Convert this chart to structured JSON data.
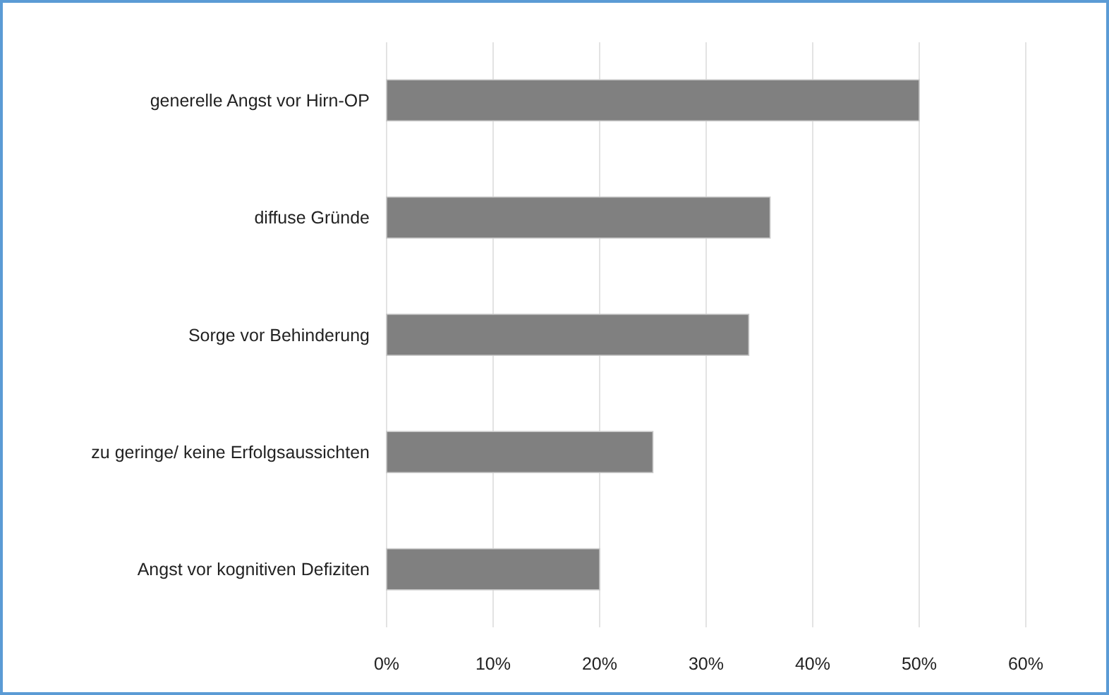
{
  "chart_data": {
    "type": "bar",
    "orientation": "horizontal",
    "categories": [
      "generelle Angst vor Hirn-OP",
      "diffuse Gründe",
      "Sorge vor Behinderung",
      "zu geringe/ keine Erfolgsaussichten",
      "Angst vor kognitiven Defiziten"
    ],
    "values": [
      50,
      36,
      34,
      25,
      20
    ],
    "color": "#808080",
    "xlim": [
      0,
      60
    ],
    "xticks": [
      {
        "value": 0,
        "label": "0%"
      },
      {
        "value": 10,
        "label": "10%"
      },
      {
        "value": 20,
        "label": "20%"
      },
      {
        "value": 30,
        "label": "30%"
      },
      {
        "value": 40,
        "label": "40%"
      },
      {
        "value": 50,
        "label": "50%"
      },
      {
        "value": 60,
        "label": "60%"
      }
    ],
    "grid": "x"
  }
}
